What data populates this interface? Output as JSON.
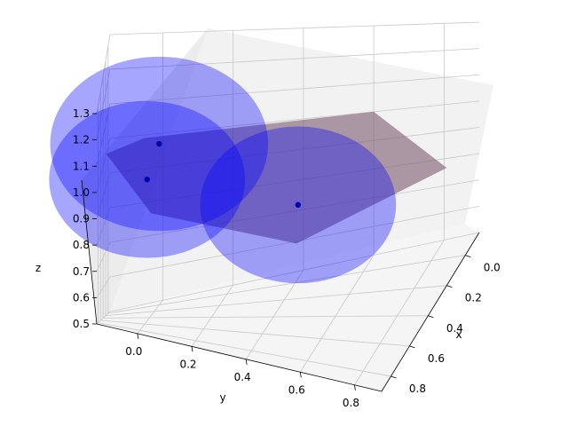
{
  "chart_data": {
    "type": "scatter",
    "title": "",
    "xlabel": "x",
    "ylabel": "y",
    "zlabel": "z",
    "xlim": [
      -0.15,
      0.9
    ],
    "ylim": [
      -0.15,
      0.9
    ],
    "zlim": [
      0.5,
      1.3
    ],
    "x_ticks": [
      "0.0",
      "0.2",
      "0.4",
      "0.6",
      "0.8"
    ],
    "y_ticks": [
      "0.0",
      "0.2",
      "0.4",
      "0.6",
      "0.8"
    ],
    "z_ticks": [
      "0.5",
      "0.6",
      "0.7",
      "0.8",
      "0.9",
      "1.0",
      "1.1",
      "1.2",
      "1.3"
    ],
    "points": [
      {
        "x": 0.0,
        "y": 0.0,
        "z": 1.0
      },
      {
        "x": 0.5,
        "y": 0.5,
        "z": 1.0
      },
      {
        "x": 0.5,
        "y": 0.0,
        "z": 1.0
      }
    ],
    "spheres": {
      "radius": 0.32,
      "color": "#0000ff",
      "opacity": 0.5
    },
    "surface": {
      "color": "#7b5a6e",
      "opacity": 0.6
    },
    "point_color": "#0000aa",
    "grid": true
  }
}
